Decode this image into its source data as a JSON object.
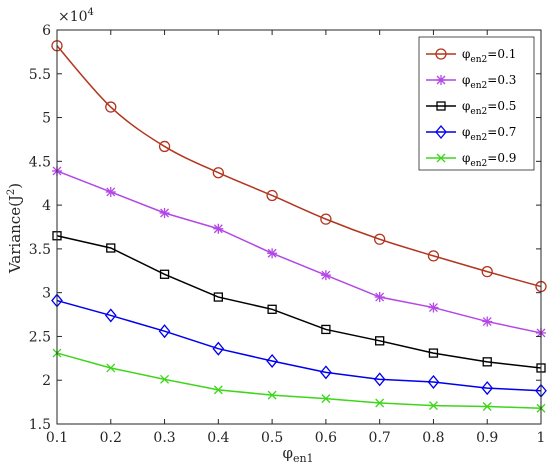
{
  "chart_data": {
    "type": "line",
    "title": "",
    "xlabel": "φ",
    "xlabel_sub": "en1",
    "ylabel": "Variance(J",
    "ylabel_sup": "2",
    "ylabel_close": ")",
    "y_exponent": "×10",
    "y_exponent_power": "4",
    "xlim": [
      0.1,
      1.0
    ],
    "ylim": [
      1.5,
      6.0
    ],
    "x_ticks": [
      "0.1",
      "0.2",
      "0.3",
      "0.4",
      "0.5",
      "0.6",
      "0.7",
      "0.8",
      "0.9",
      "1"
    ],
    "y_ticks": [
      "1.5",
      "2",
      "2.5",
      "3",
      "3.5",
      "4",
      "4.5",
      "5",
      "5.5",
      "6"
    ],
    "grid": false,
    "legend_position": "top-right",
    "x": [
      0.1,
      0.2,
      0.3,
      0.4,
      0.5,
      0.6,
      0.7,
      0.8,
      0.9,
      1.0
    ],
    "series": [
      {
        "name": "φ",
        "name_sub": "en2",
        "name_suffix": "=0.1",
        "color": "#b2361f",
        "marker": "circle",
        "smooth": true,
        "values": [
          5.82,
          5.12,
          4.67,
          4.37,
          4.11,
          3.84,
          3.61,
          3.42,
          3.24,
          3.07
        ]
      },
      {
        "name": "φ",
        "name_sub": "en2",
        "name_suffix": "=0.3",
        "color": "#b347e6",
        "marker": "asterisk",
        "smooth": false,
        "values": [
          4.39,
          4.15,
          3.91,
          3.73,
          3.45,
          3.2,
          2.95,
          2.83,
          2.67,
          2.54
        ]
      },
      {
        "name": "φ",
        "name_sub": "en2",
        "name_suffix": "=0.5",
        "color": "#000000",
        "marker": "square",
        "smooth": false,
        "values": [
          3.65,
          3.51,
          3.21,
          2.95,
          2.81,
          2.58,
          2.45,
          2.31,
          2.21,
          2.14
        ]
      },
      {
        "name": "φ",
        "name_sub": "en2",
        "name_suffix": "=0.7",
        "color": "#0000ee",
        "marker": "diamond",
        "smooth": false,
        "values": [
          2.91,
          2.74,
          2.56,
          2.36,
          2.22,
          2.09,
          2.01,
          1.98,
          1.91,
          1.88
        ]
      },
      {
        "name": "φ",
        "name_sub": "en2",
        "name_suffix": "=0.9",
        "color": "#3dd61b",
        "marker": "x",
        "smooth": false,
        "values": [
          2.31,
          2.14,
          2.01,
          1.89,
          1.83,
          1.79,
          1.74,
          1.71,
          1.7,
          1.68
        ]
      }
    ]
  }
}
